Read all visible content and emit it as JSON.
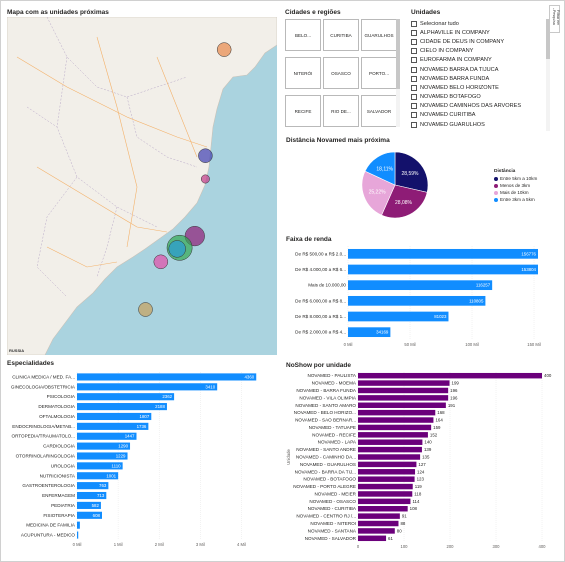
{
  "map": {
    "title": "Mapa com as unidades próximas",
    "attribution": "RUSSIA",
    "bubbles": [
      {
        "lon": -38.5,
        "lat": -3.8,
        "r": 5,
        "color": "#e8894a"
      },
      {
        "lon": -40.1,
        "lat": -12.9,
        "r": 5,
        "color": "#3f3fb1"
      },
      {
        "lon": -40.1,
        "lat": -14.9,
        "r": 3,
        "color": "#c23a88"
      },
      {
        "lon": -41.0,
        "lat": -19.8,
        "r": 7,
        "color": "#8e1c76"
      },
      {
        "lon": -42.3,
        "lat": -20.8,
        "r": 9,
        "color": "#32a852"
      },
      {
        "lon": -42.5,
        "lat": -20.9,
        "r": 6,
        "color": "#2b9bd6"
      },
      {
        "lon": -43.9,
        "lat": -22.0,
        "r": 5,
        "color": "#e34da8"
      },
      {
        "lon": -45.2,
        "lat": -26.1,
        "r": 5,
        "color": "#c8a15b"
      }
    ]
  },
  "cities": {
    "title": "Cidades e regiões",
    "buttons": [
      "BELO...",
      "CURITIBA",
      "GUARULHOS",
      "NITERÓI",
      "OSASCO",
      "PORTO...",
      "RECIFE",
      "RIO DE...",
      "SALVADOR"
    ]
  },
  "units": {
    "title": "Unidades",
    "items": [
      "Selecionar tudo",
      "ALPHAVILLE IN COMPANY",
      "CIDADE DE DEUS IN COMPANY",
      "CIELO IN COMPANY",
      "EUROFARMA IN COMPANY",
      "NOVAMED BARRA DA TIJUCA",
      "NOVAMED BARRA FUNDA",
      "NOVAMED BELO HORIZONTE",
      "NOVAMED BOTAFOGO",
      "NOVAMED CAMINHOS DAS ARVORES",
      "NOVAMED CURITIBA",
      "NOVAMED GUARULHOS"
    ]
  },
  "filter_pane": {
    "label": "Filtrar em Pesquisa",
    "arrow": "‹"
  },
  "chart_data": [
    {
      "type": "pie",
      "title": "Distância Novamed mais próxima",
      "legend_title": "Distância",
      "slices": [
        {
          "name": "Entre 5km a 10km",
          "value": 28.59,
          "label": "28,59%",
          "color": "#13116b"
        },
        {
          "name": "Menos de 3km",
          "value": 28.08,
          "label": "28,08%",
          "color": "#8e1c76"
        },
        {
          "name": "Mais de 10km",
          "value": 25.22,
          "label": "25,22%",
          "color": "#e7a6d9"
        },
        {
          "name": "Entre 3km a 5km",
          "value": 18.11,
          "label": "18,11%",
          "color": "#118dff"
        }
      ],
      "legend_order": [
        "Entre 5km a 10km",
        "Menos de 3km",
        "Mais de 10km",
        "Entre 3km a 5km"
      ]
    },
    {
      "type": "bar",
      "orientation": "horizontal",
      "title": "Faixa de renda",
      "color": "#118dff",
      "categories": [
        "De R$ 500,00 a R$ 2.0...",
        "De R$ 4.000,00 a R$ 6...",
        "Mais de 10.000,00",
        "De R$ 6.000,00 a R$ 8...",
        "De R$ 8.000,00 a R$ 1...",
        "De R$ 2.000,00 a R$ 4..."
      ],
      "values": [
        156776,
        153804,
        116257,
        110805,
        81023,
        34169
      ],
      "value_labels": [
        "156776",
        "153804",
        "116257",
        "110805",
        "81023",
        "34169"
      ],
      "xlim": [
        0,
        150000
      ],
      "x_ticks": [
        0,
        50000,
        100000,
        150000
      ],
      "x_tick_labels": [
        "0 Mil",
        "50 Mil",
        "100 Mil",
        "150 Mil"
      ]
    },
    {
      "type": "bar",
      "orientation": "horizontal",
      "title": "Especialidades",
      "color": "#118dff",
      "categories": [
        "CLINICA MEDICA / MED. FA...",
        "GINECOLOGIA/OBSTETRICIA",
        "PSICOLOGIA",
        "DERMATOLOGIA",
        "OFTALMOLOGIA",
        "ENDOCRINOLOGIA/METAB...",
        "ORTOPEDIA/TRAUMATOLO...",
        "CARDIOLOGIA",
        "OTORRINOLARINGOLOGIA",
        "UROLOGIA",
        "NUTRICIONISTA",
        "GASTROENTEROLOGIA",
        "ENFERMAGEM",
        "PEDIATRIA",
        "FISIOTERAPIA",
        "MEDICINA DE FAMILIA",
        "ACUPUNTURA - MEDICO"
      ],
      "values": [
        4360,
        3410,
        2362,
        2188,
        1807,
        1736,
        1447,
        1290,
        1229,
        1110,
        1001,
        763,
        713,
        582,
        608,
        70,
        30
      ],
      "value_labels": [
        "4360",
        "3410",
        "2362",
        "2188",
        "1807",
        "1736",
        "1447",
        "1290",
        "1229",
        "1110",
        "1001",
        "763",
        "713",
        "582",
        "608",
        "",
        ""
      ],
      "xlim": [
        0,
        4500
      ],
      "x_ticks": [
        0,
        1000,
        2000,
        3000,
        4000
      ],
      "x_tick_labels": [
        "0 Mil",
        "1 Mil",
        "2 Mil",
        "3 Mil",
        "4 Mil"
      ]
    },
    {
      "type": "bar",
      "orientation": "horizontal",
      "title": "NoShow por unidade",
      "color": "#6b007b",
      "ylabel": "Unidade",
      "categories": [
        "NOVAMED - PAULISTA",
        "NOVAMED - MOEMA",
        "NOVAMED - BARRA FUNDA",
        "NOVAMED - VILA OLIMPIA",
        "NOVAMED - SANTO AMARO",
        "NOVAMED - BELO HORIZO...",
        "NOVAMED - SAO BERNAR...",
        "NOVAMED - TATUAPE",
        "NOVAMED - RECIFE",
        "NOVAMED - LAPA",
        "NOVAMED - SANTO ANDRE",
        "NOVAMED - CAMINHO DA...",
        "NOVAMED - GUARULHOS",
        "NOVAMED - BARRA DA TIJ...",
        "NOVAMED - BOTAFOGO",
        "NOVAMED - PORTO ALEGRE",
        "NOVAMED - MEIER",
        "NOVAMED - OSASCO",
        "NOVAMED - CURITIBA",
        "NOVAMED - CENTRO RJ /...",
        "NOVAMED - NITEROI",
        "NOVAMED - SANTANA",
        "NOVAMED - SALVADOR"
      ],
      "values": [
        400,
        199,
        196,
        196,
        191,
        168,
        164,
        159,
        152,
        140,
        139,
        135,
        127,
        124,
        123,
        119,
        118,
        114,
        108,
        91,
        88,
        80,
        61
      ],
      "xlim": [
        0,
        400
      ],
      "x_ticks": [
        0,
        100,
        200,
        300,
        400
      ],
      "x_tick_labels": [
        "0",
        "100",
        "200",
        "300",
        "400"
      ]
    }
  ]
}
